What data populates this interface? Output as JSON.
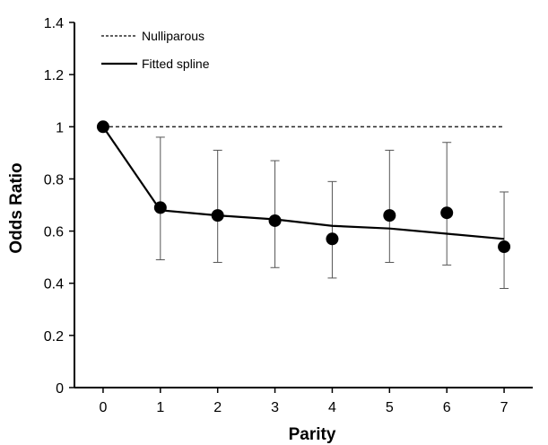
{
  "chart_data": {
    "type": "scatter",
    "xlabel": "Parity",
    "ylabel": "Odds Ratio",
    "xlim": [
      -0.5,
      7.5
    ],
    "ylim": [
      0,
      1.4
    ],
    "x_ticks": [
      "0",
      "1",
      "2",
      "3",
      "4",
      "5",
      "6",
      "7"
    ],
    "y_ticks": [
      "0",
      "0.2",
      "0.4",
      "0.6",
      "0.8",
      "1",
      "1.2",
      "1.4"
    ],
    "grid": false,
    "legend": {
      "placement": "top-left",
      "entries": [
        {
          "label": "Nulliparous",
          "style": "dashed"
        },
        {
          "label": "Fitted spline",
          "style": "solid"
        }
      ]
    },
    "reference_line": {
      "name": "Nulliparous",
      "y": 1.0,
      "x_range": [
        0,
        7
      ]
    },
    "fitted_spline": {
      "name": "Fitted spline",
      "x": [
        0,
        1,
        2,
        3,
        4,
        5,
        6,
        7
      ],
      "y": [
        1.0,
        0.68,
        0.66,
        0.645,
        0.62,
        0.61,
        0.59,
        0.57
      ]
    },
    "points": [
      {
        "x": 0,
        "y": 1.0
      },
      {
        "x": 1,
        "y": 0.69,
        "lower": 0.49,
        "upper": 0.96
      },
      {
        "x": 2,
        "y": 0.66,
        "lower": 0.48,
        "upper": 0.91
      },
      {
        "x": 3,
        "y": 0.64,
        "lower": 0.46,
        "upper": 0.87
      },
      {
        "x": 4,
        "y": 0.57,
        "lower": 0.42,
        "upper": 0.79
      },
      {
        "x": 5,
        "y": 0.66,
        "lower": 0.48,
        "upper": 0.91
      },
      {
        "x": 6,
        "y": 0.67,
        "lower": 0.47,
        "upper": 0.94
      },
      {
        "x": 7,
        "y": 0.54,
        "lower": 0.38,
        "upper": 0.75
      }
    ],
    "colors": {
      "marker": "#000000",
      "line": "#000000",
      "error_bar": "#555555"
    }
  }
}
